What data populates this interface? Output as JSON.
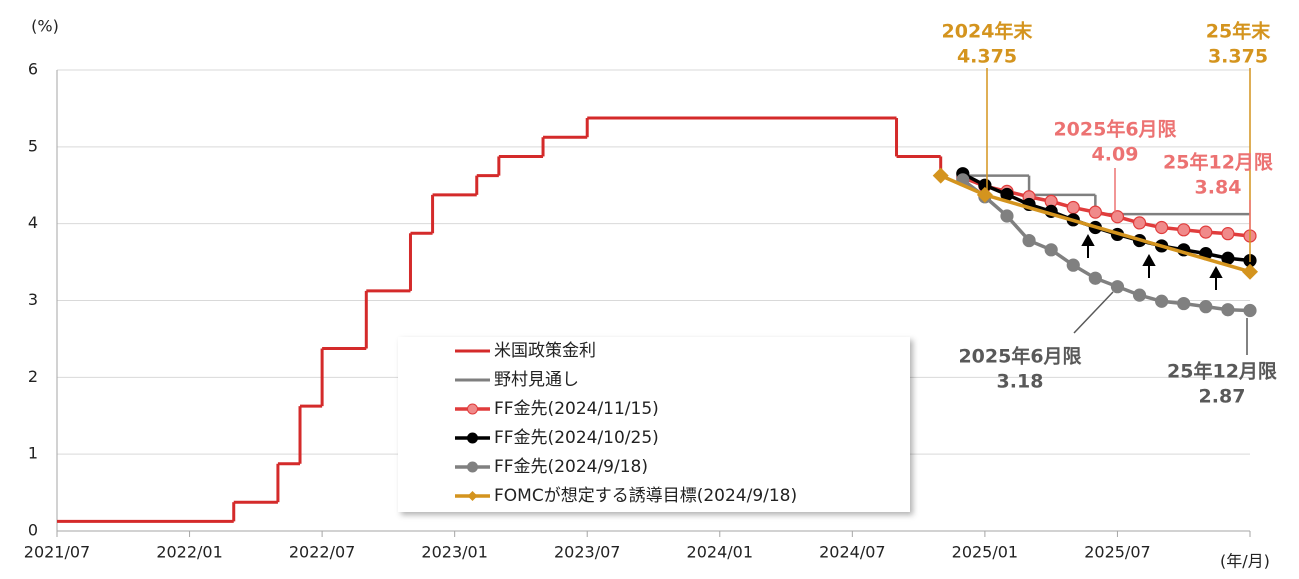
{
  "chart_data": {
    "type": "line",
    "y_label": "(%)",
    "x_label": "(年/月)",
    "xlim": [
      "2021/07",
      "2026/01"
    ],
    "xticks": [
      "2021/07",
      "2022/01",
      "2022/07",
      "2023/01",
      "2023/07",
      "2024/01",
      "2024/07",
      "2025/01",
      "2025/07"
    ],
    "ylim": [
      0,
      6
    ],
    "yticks": [
      0,
      1,
      2,
      3,
      4,
      5,
      6
    ],
    "grid": true,
    "legend": "lower-center",
    "series": [
      {
        "name": "米国政策金利",
        "color": "#d42a2a",
        "style": "step",
        "marker": "none",
        "x": [
          "2021/07",
          "2022/03",
          "2022/05",
          "2022/06",
          "2022/07",
          "2022/09",
          "2022/11",
          "2022/12",
          "2023/02",
          "2023/03",
          "2023/05",
          "2023/07",
          "2024/09",
          "2024/11"
        ],
        "values": [
          0.125,
          0.375,
          0.875,
          1.625,
          2.375,
          3.125,
          3.875,
          4.375,
          4.625,
          4.875,
          5.125,
          5.375,
          4.875,
          4.625
        ]
      },
      {
        "name": "野村見通し",
        "color": "#7f7f7f",
        "style": "step",
        "marker": "none",
        "x": [
          "2024/12",
          "2025/03",
          "2025/06",
          "2026/01"
        ],
        "values": [
          4.625,
          4.375,
          4.125,
          4.125
        ]
      },
      {
        "name": "FF金先(2024/11/15)",
        "color": "#e03c3c",
        "marker_color": "#f08a8a",
        "style": "line",
        "marker": "circle",
        "x": [
          "2024/12",
          "2025/01",
          "2025/02",
          "2025/03",
          "2025/04",
          "2025/05",
          "2025/06",
          "2025/07",
          "2025/08",
          "2025/09",
          "2025/10",
          "2025/11",
          "2025/12",
          "2026/01"
        ],
        "values": [
          4.6,
          4.49,
          4.42,
          4.35,
          4.29,
          4.21,
          4.15,
          4.09,
          4.01,
          3.95,
          3.92,
          3.89,
          3.87,
          3.84
        ]
      },
      {
        "name": "FF金先(2024/10/25)",
        "color": "#000000",
        "marker_color": "#000000",
        "style": "line",
        "marker": "circle",
        "x": [
          "2024/12",
          "2025/01",
          "2025/02",
          "2025/03",
          "2025/04",
          "2025/05",
          "2025/06",
          "2025/07",
          "2025/08",
          "2025/09",
          "2025/10",
          "2025/11",
          "2025/12",
          "2026/01"
        ],
        "values": [
          4.65,
          4.5,
          4.38,
          4.25,
          4.16,
          4.05,
          3.95,
          3.86,
          3.78,
          3.71,
          3.66,
          3.61,
          3.55,
          3.52
        ]
      },
      {
        "name": "FF金先(2024/9/18)",
        "color": "#808080",
        "marker_color": "#808080",
        "style": "line",
        "marker": "circle",
        "x": [
          "2024/12",
          "2025/01",
          "2025/02",
          "2025/03",
          "2025/04",
          "2025/05",
          "2025/06",
          "2025/07",
          "2025/08",
          "2025/09",
          "2025/10",
          "2025/11",
          "2025/12",
          "2026/01"
        ],
        "values": [
          4.57,
          4.35,
          4.1,
          3.78,
          3.66,
          3.46,
          3.29,
          3.18,
          3.07,
          2.99,
          2.96,
          2.92,
          2.88,
          2.87
        ]
      },
      {
        "name": "FOMCが想定する誘導目標(2024/9/18)",
        "color": "#d4941e",
        "marker_color": "#d4941e",
        "style": "line",
        "marker": "diamond",
        "x": [
          "2024/11",
          "2025/01",
          "2026/01"
        ],
        "values": [
          4.625,
          4.375,
          3.375
        ]
      }
    ],
    "annotations": [
      {
        "lines": [
          "2024年末",
          "4.375"
        ],
        "color": "#d4941e"
      },
      {
        "lines": [
          "25年末",
          "3.375"
        ],
        "color": "#d4941e"
      },
      {
        "lines": [
          "2025年6月限",
          "4.09"
        ],
        "color": "#ec7272"
      },
      {
        "lines": [
          "25年12月限",
          "3.84"
        ],
        "color": "#ec7272"
      },
      {
        "lines": [
          "2025年6月限",
          "3.18"
        ],
        "color": "#595959"
      },
      {
        "lines": [
          "25年12月限",
          "2.87"
        ],
        "color": "#595959"
      }
    ]
  }
}
